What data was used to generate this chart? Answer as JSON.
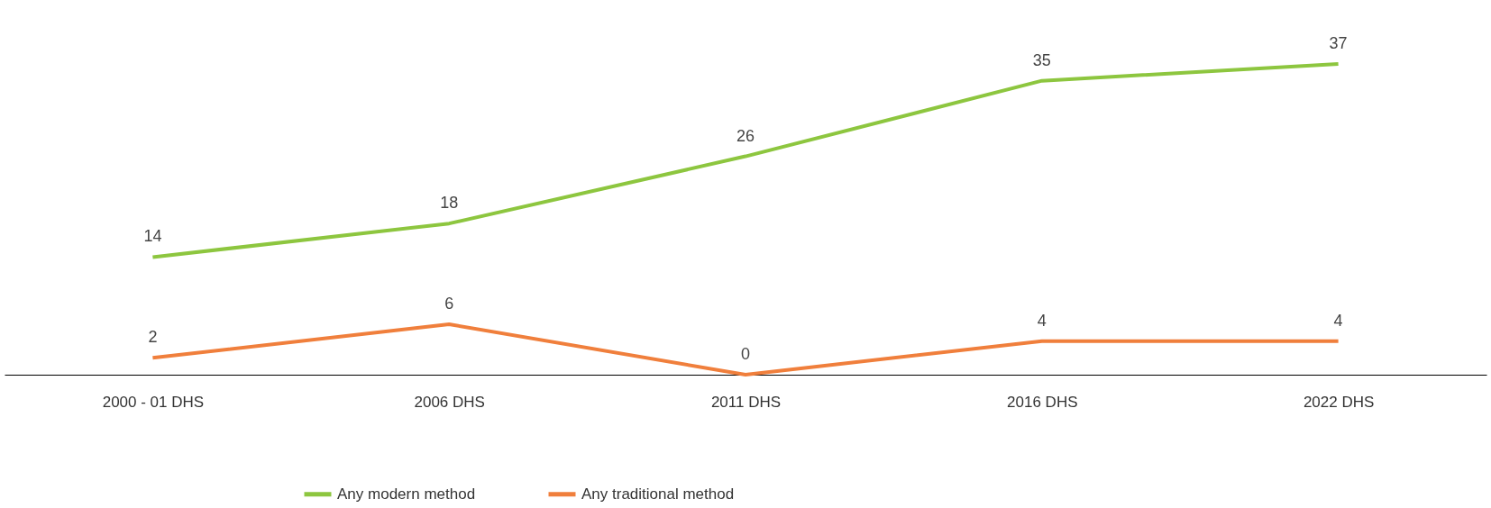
{
  "chart_data": {
    "type": "line",
    "categories": [
      "2000 - 01 DHS",
      "2006 DHS",
      "2011 DHS",
      "2016 DHS",
      "2022 DHS"
    ],
    "series": [
      {
        "name": "Any modern method",
        "color": "#8dc63f",
        "values": [
          14,
          18,
          26,
          35,
          37
        ]
      },
      {
        "name": "Any traditional method",
        "color": "#f07f3c",
        "values": [
          2,
          6,
          0,
          4,
          4
        ]
      }
    ],
    "data_labels": true,
    "legend": "bottom",
    "grid": false,
    "tick_labels": "x",
    "marker": "none",
    "line_style": "solid"
  }
}
